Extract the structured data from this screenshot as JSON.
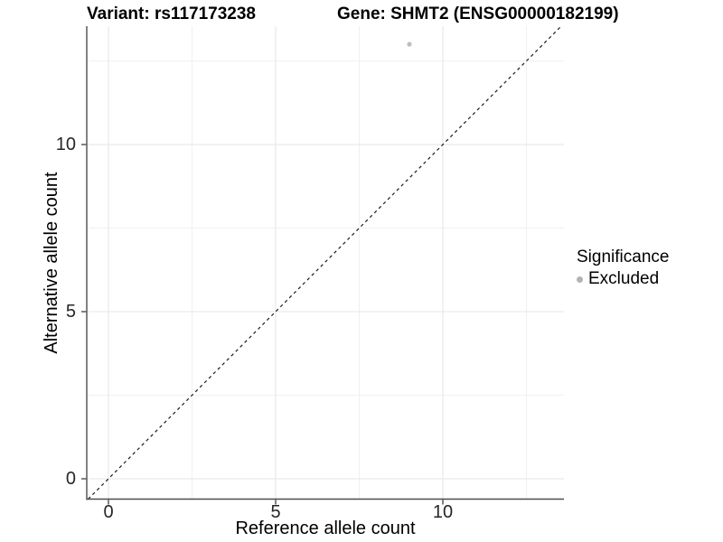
{
  "titles": {
    "variant": "Variant: rs117173238",
    "gene": "Gene: SHMT2 (ENSG00000182199)"
  },
  "chart_data": {
    "type": "scatter",
    "title_left": "Variant: rs117173238",
    "title_right": "Gene: SHMT2 (ENSG00000182199)",
    "xlabel": "Reference allele count",
    "ylabel": "Alternative allele count",
    "xlim": [
      -0.68,
      13.62
    ],
    "ylim": [
      -0.61,
      13.54
    ],
    "x_major_ticks": [
      0,
      5,
      10
    ],
    "y_major_ticks": [
      0,
      5,
      10
    ],
    "x_minor_gridlines": [
      2.5,
      7.5,
      12.5
    ],
    "y_minor_gridlines": [
      2.5,
      7.5,
      12.5
    ],
    "grid": "major and minor gridlines on white background",
    "points": [
      {
        "x": 9,
        "y": 13,
        "series": "Excluded"
      }
    ],
    "reference_line": {
      "type": "identity",
      "slope": 1,
      "intercept": 0,
      "style": "dashed",
      "color": "#1a1a1a"
    },
    "legend": {
      "title": "Significance",
      "position": "right",
      "entries": [
        {
          "label": "Excluded",
          "marker": "circle",
          "color": "#b3b3b3"
        }
      ]
    },
    "colors": {
      "background": "#ffffff",
      "point": "#bdbdbd",
      "legend_key": "#b3b3b3",
      "grid_major": "#e6e6e6",
      "grid_minor": "#f0f0f0",
      "axis_line": "#4d4d4d",
      "dashed_line": "#1a1a1a",
      "tick_text": "#262626"
    }
  }
}
